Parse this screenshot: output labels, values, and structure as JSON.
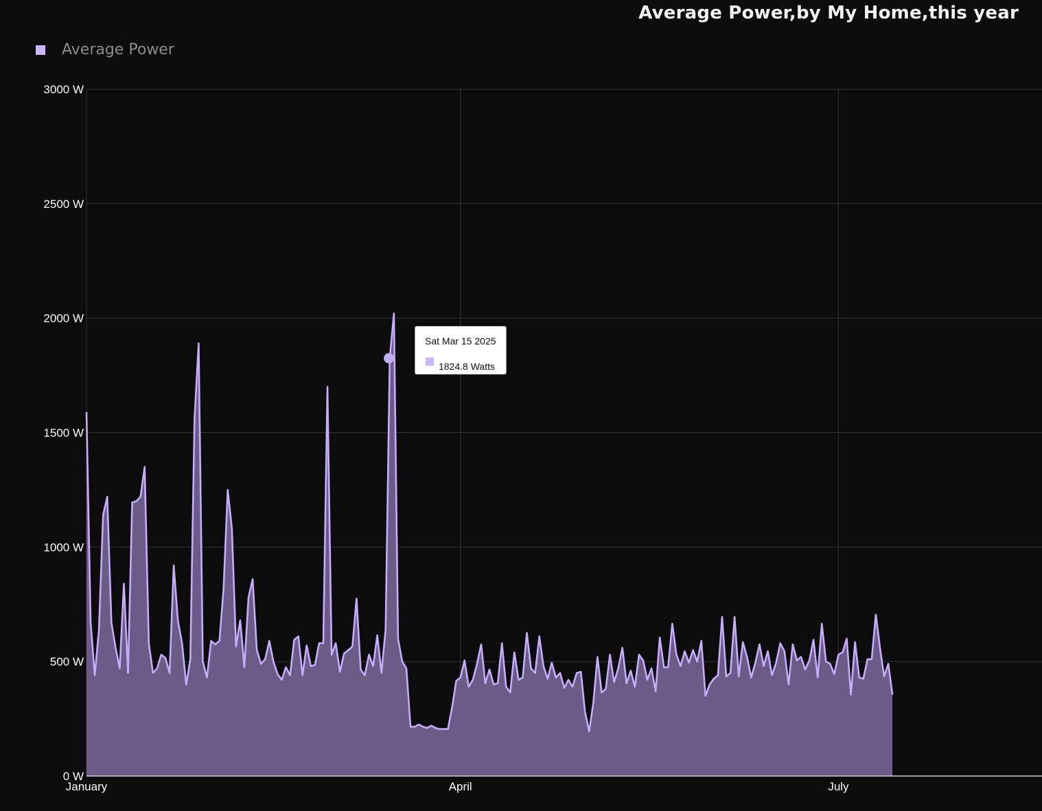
{
  "title": "Average Power,by My Home,this year",
  "legend": {
    "label": "Average Power",
    "color": "#cbb6ff"
  },
  "tooltip": {
    "date": "Sat Mar 15 2025",
    "value": "1824.8 Watts"
  },
  "colors": {
    "line": "#c4adfa",
    "fill": "#6a5c86",
    "grid": "#2e2e30",
    "background": "#0c0c0d"
  },
  "chart_data": {
    "type": "area",
    "x_axis": {
      "ticks": [
        "January",
        "April",
        "July"
      ],
      "tick_day_index": [
        0,
        90,
        181
      ],
      "start": "2025-01-01",
      "max_day_index": 230
    },
    "y_axis": {
      "ticks": [
        "0 W",
        "500 W",
        "1000 W",
        "1500 W",
        "2000 W",
        "2500 W",
        "3000 W"
      ],
      "ylim": [
        0,
        3000
      ]
    },
    "grid": true,
    "legend_position": "top-left",
    "highlight": {
      "date": "2025-03-15",
      "value": 1824.8
    },
    "series": [
      {
        "name": "Average Power",
        "start_date": "2025-01-01",
        "values": [
          1590,
          670,
          440,
          640,
          1140,
          1220,
          670,
          560,
          470,
          840,
          450,
          1195,
          1200,
          1220,
          1350,
          580,
          450,
          470,
          530,
          515,
          450,
          920,
          680,
          580,
          400,
          510,
          1560,
          1890,
          500,
          430,
          590,
          575,
          590,
          820,
          1250,
          1080,
          565,
          680,
          475,
          780,
          860,
          550,
          490,
          510,
          590,
          500,
          445,
          420,
          475,
          440,
          595,
          610,
          440,
          570,
          480,
          485,
          580,
          580,
          1700,
          530,
          580,
          455,
          535,
          550,
          565,
          775,
          465,
          440,
          530,
          480,
          615,
          450,
          640,
          1825,
          2020,
          600,
          500,
          470,
          215,
          215,
          225,
          215,
          210,
          220,
          210,
          205,
          205,
          205,
          300,
          415,
          430,
          505,
          390,
          420,
          490,
          575,
          405,
          465,
          400,
          405,
          580,
          390,
          365,
          540,
          420,
          430,
          625,
          470,
          450,
          610,
          480,
          425,
          495,
          430,
          450,
          385,
          420,
          390,
          450,
          455,
          280,
          195,
          320,
          520,
          365,
          380,
          530,
          410,
          470,
          560,
          405,
          460,
          390,
          530,
          505,
          420,
          470,
          370,
          605,
          475,
          475,
          665,
          530,
          480,
          545,
          495,
          550,
          500,
          590,
          350,
          400,
          425,
          440,
          695,
          435,
          450,
          695,
          435,
          585,
          520,
          430,
          495,
          575,
          480,
          545,
          440,
          495,
          580,
          545,
          400,
          575,
          505,
          520,
          465,
          505,
          595,
          430,
          665,
          500,
          490,
          445,
          530,
          540,
          600,
          355,
          585,
          430,
          425,
          510,
          510,
          705,
          560,
          435,
          490,
          355
        ]
      }
    ]
  }
}
